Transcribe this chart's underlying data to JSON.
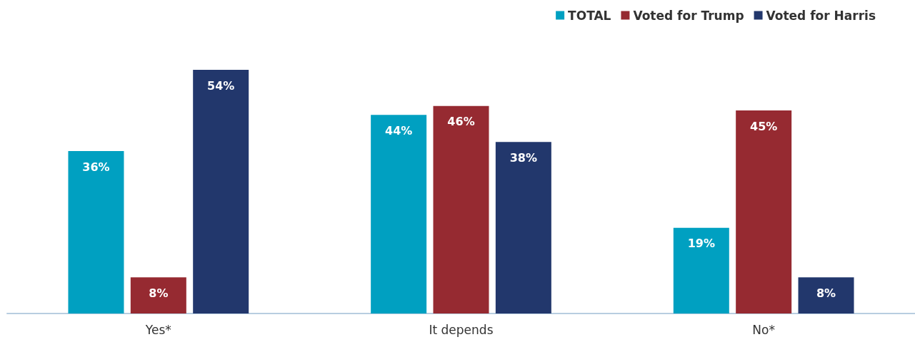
{
  "chart_data": {
    "type": "bar",
    "categories": [
      "Yes*",
      "It depends",
      "No*"
    ],
    "series": [
      {
        "name": "TOTAL",
        "color": "#00a0c1",
        "values": [
          36,
          44,
          19
        ],
        "value_labels": [
          "36%",
          "44%",
          "19%"
        ]
      },
      {
        "name": "Voted for Trump",
        "color": "#962a31",
        "values": [
          8,
          46,
          45
        ],
        "value_labels": [
          "8%",
          "46%",
          "45%"
        ]
      },
      {
        "name": "Voted for Harris",
        "color": "#22376c",
        "values": [
          54,
          38,
          8
        ],
        "value_labels": [
          "54%",
          "38%",
          "8%"
        ]
      }
    ],
    "legend": "top right"
  }
}
